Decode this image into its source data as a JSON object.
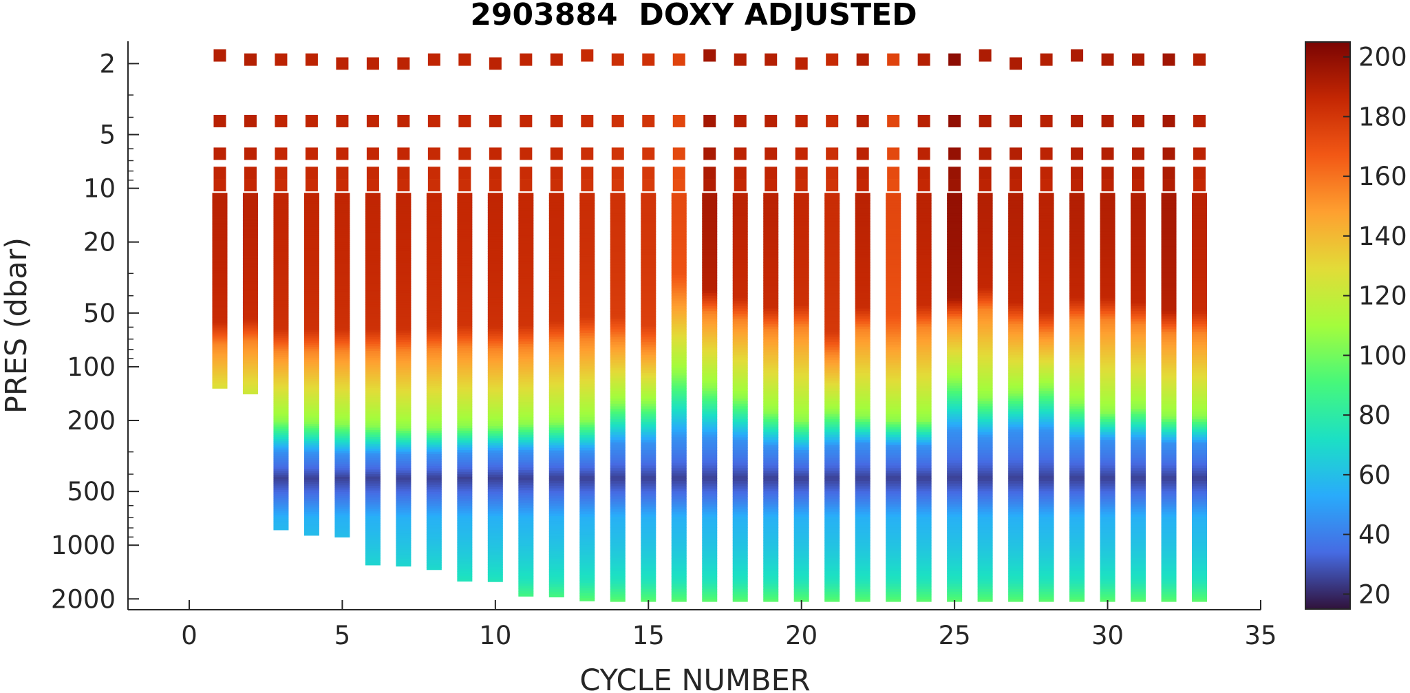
{
  "chart_data": {
    "type": "heatmap",
    "title": "2903884  DOXY ADJUSTED",
    "xlabel": "CYCLE NUMBER",
    "ylabel": "PRES (dbar)",
    "xlim": [
      -2,
      35
    ],
    "ylim": [
      1.5,
      2300
    ],
    "yscale": "log",
    "y_reversed": true,
    "grid": false,
    "x_ticks": [
      0,
      5,
      10,
      15,
      20,
      25,
      30,
      35
    ],
    "x_tick_labels": [
      "0",
      "5",
      "10",
      "15",
      "20",
      "25",
      "30",
      "35"
    ],
    "y_ticks": [
      2,
      5,
      10,
      20,
      50,
      100,
      200,
      500,
      1000,
      2000
    ],
    "y_tick_labels": [
      "2",
      "5",
      "10",
      "20",
      "50",
      "100",
      "200",
      "500",
      "1000",
      "2000"
    ],
    "colorbar": {
      "colormap": "turbo",
      "range": [
        15,
        205
      ],
      "ticks": [
        20,
        40,
        60,
        80,
        100,
        120,
        140,
        160,
        180,
        200
      ],
      "tick_labels": [
        "20",
        "40",
        "60",
        "80",
        "100",
        "120",
        "140",
        "160",
        "180",
        "200"
      ]
    },
    "near_surface_levels_dbar": [
      4.2,
      6.4,
      8.2,
      9.6
    ],
    "profiles": [
      {
        "cycle": 1,
        "top_pres": 1.8,
        "max_pres": 132,
        "o2_surface": 190,
        "d_mid": 75,
        "d_low": 200,
        "d_deep": 300
      },
      {
        "cycle": 2,
        "top_pres": 1.9,
        "max_pres": 142,
        "o2_surface": 190,
        "d_mid": 72,
        "d_low": 200,
        "d_deep": 300
      },
      {
        "cycle": 3,
        "top_pres": 1.9,
        "max_pres": 820,
        "o2_surface": 188,
        "d_mid": 82,
        "d_low": 200,
        "d_deep": 300
      },
      {
        "cycle": 4,
        "top_pres": 1.9,
        "max_pres": 880,
        "o2_surface": 188,
        "d_mid": 82,
        "d_low": 205,
        "d_deep": 305
      },
      {
        "cycle": 5,
        "top_pres": 2.0,
        "max_pres": 900,
        "o2_surface": 188,
        "d_mid": 82,
        "d_low": 210,
        "d_deep": 310
      },
      {
        "cycle": 6,
        "top_pres": 2.0,
        "max_pres": 1290,
        "o2_surface": 188,
        "d_mid": 82,
        "d_low": 215,
        "d_deep": 310
      },
      {
        "cycle": 7,
        "top_pres": 2.0,
        "max_pres": 1310,
        "o2_surface": 188,
        "d_mid": 82,
        "d_low": 220,
        "d_deep": 310
      },
      {
        "cycle": 8,
        "top_pres": 1.9,
        "max_pres": 1370,
        "o2_surface": 187,
        "d_mid": 80,
        "d_low": 220,
        "d_deep": 310
      },
      {
        "cycle": 9,
        "top_pres": 1.9,
        "max_pres": 1590,
        "o2_surface": 187,
        "d_mid": 78,
        "d_low": 215,
        "d_deep": 305
      },
      {
        "cycle": 10,
        "top_pres": 2.0,
        "max_pres": 1600,
        "o2_surface": 188,
        "d_mid": 80,
        "d_low": 215,
        "d_deep": 300
      },
      {
        "cycle": 11,
        "top_pres": 1.9,
        "max_pres": 1930,
        "o2_surface": 187,
        "d_mid": 78,
        "d_low": 210,
        "d_deep": 300
      },
      {
        "cycle": 12,
        "top_pres": 1.9,
        "max_pres": 1950,
        "o2_surface": 187,
        "d_mid": 74,
        "d_low": 205,
        "d_deep": 300
      },
      {
        "cycle": 13,
        "top_pres": 1.8,
        "max_pres": 2050,
        "o2_surface": 185,
        "d_mid": 70,
        "d_low": 200,
        "d_deep": 300
      },
      {
        "cycle": 14,
        "top_pres": 1.9,
        "max_pres": 2150,
        "o2_surface": 183,
        "d_mid": 70,
        "d_low": 160,
        "d_deep": 270
      },
      {
        "cycle": 15,
        "top_pres": 1.9,
        "max_pres": 2150,
        "o2_surface": 182,
        "d_mid": 78,
        "d_low": 160,
        "d_deep": 270
      },
      {
        "cycle": 16,
        "top_pres": 1.9,
        "max_pres": 2150,
        "o2_surface": 175,
        "d_mid": 40,
        "d_low": 110,
        "d_deep": 250
      },
      {
        "cycle": 17,
        "top_pres": 1.8,
        "max_pres": 2150,
        "o2_surface": 195,
        "d_mid": 50,
        "d_low": 130,
        "d_deep": 250
      },
      {
        "cycle": 18,
        "top_pres": 1.9,
        "max_pres": 2150,
        "o2_surface": 190,
        "d_mid": 55,
        "d_low": 150,
        "d_deep": 260
      },
      {
        "cycle": 19,
        "top_pres": 1.9,
        "max_pres": 2150,
        "o2_surface": 190,
        "d_mid": 62,
        "d_low": 180,
        "d_deep": 280
      },
      {
        "cycle": 20,
        "top_pres": 2.0,
        "max_pres": 2150,
        "o2_surface": 188,
        "d_mid": 60,
        "d_low": 200,
        "d_deep": 300
      },
      {
        "cycle": 21,
        "top_pres": 1.9,
        "max_pres": 2150,
        "o2_surface": 185,
        "d_mid": 85,
        "d_low": 180,
        "d_deep": 280
      },
      {
        "cycle": 22,
        "top_pres": 1.9,
        "max_pres": 2150,
        "o2_surface": 190,
        "d_mid": 62,
        "d_low": 190,
        "d_deep": 270
      },
      {
        "cycle": 23,
        "top_pres": 1.9,
        "max_pres": 2150,
        "o2_surface": 175,
        "d_mid": 68,
        "d_low": 200,
        "d_deep": 280
      },
      {
        "cycle": 24,
        "top_pres": 1.9,
        "max_pres": 2150,
        "o2_surface": 190,
        "d_mid": 60,
        "d_low": 200,
        "d_deep": 280
      },
      {
        "cycle": 25,
        "top_pres": 1.9,
        "max_pres": 2150,
        "o2_surface": 200,
        "d_mid": 55,
        "d_low": 120,
        "d_deep": 230
      },
      {
        "cycle": 26,
        "top_pres": 1.8,
        "max_pres": 2150,
        "o2_surface": 192,
        "d_mid": 48,
        "d_low": 150,
        "d_deep": 250
      },
      {
        "cycle": 27,
        "top_pres": 2.0,
        "max_pres": 2150,
        "o2_surface": 192,
        "d_mid": 58,
        "d_low": 140,
        "d_deep": 230
      },
      {
        "cycle": 28,
        "top_pres": 1.9,
        "max_pres": 2150,
        "o2_surface": 190,
        "d_mid": 65,
        "d_low": 130,
        "d_deep": 230
      },
      {
        "cycle": 29,
        "top_pres": 1.8,
        "max_pres": 2150,
        "o2_surface": 192,
        "d_mid": 55,
        "d_low": 160,
        "d_deep": 260
      },
      {
        "cycle": 30,
        "top_pres": 1.9,
        "max_pres": 2150,
        "o2_surface": 192,
        "d_mid": 55,
        "d_low": 180,
        "d_deep": 260
      },
      {
        "cycle": 31,
        "top_pres": 1.9,
        "max_pres": 2150,
        "o2_surface": 192,
        "d_mid": 58,
        "d_low": 170,
        "d_deep": 260
      },
      {
        "cycle": 32,
        "top_pres": 1.9,
        "max_pres": 2150,
        "o2_surface": 195,
        "d_mid": 65,
        "d_low": 190,
        "d_deep": 270
      },
      {
        "cycle": 33,
        "top_pres": 1.9,
        "max_pres": 2150,
        "o2_surface": 190,
        "d_mid": 65,
        "d_low": 190,
        "d_deep": 270
      }
    ]
  }
}
